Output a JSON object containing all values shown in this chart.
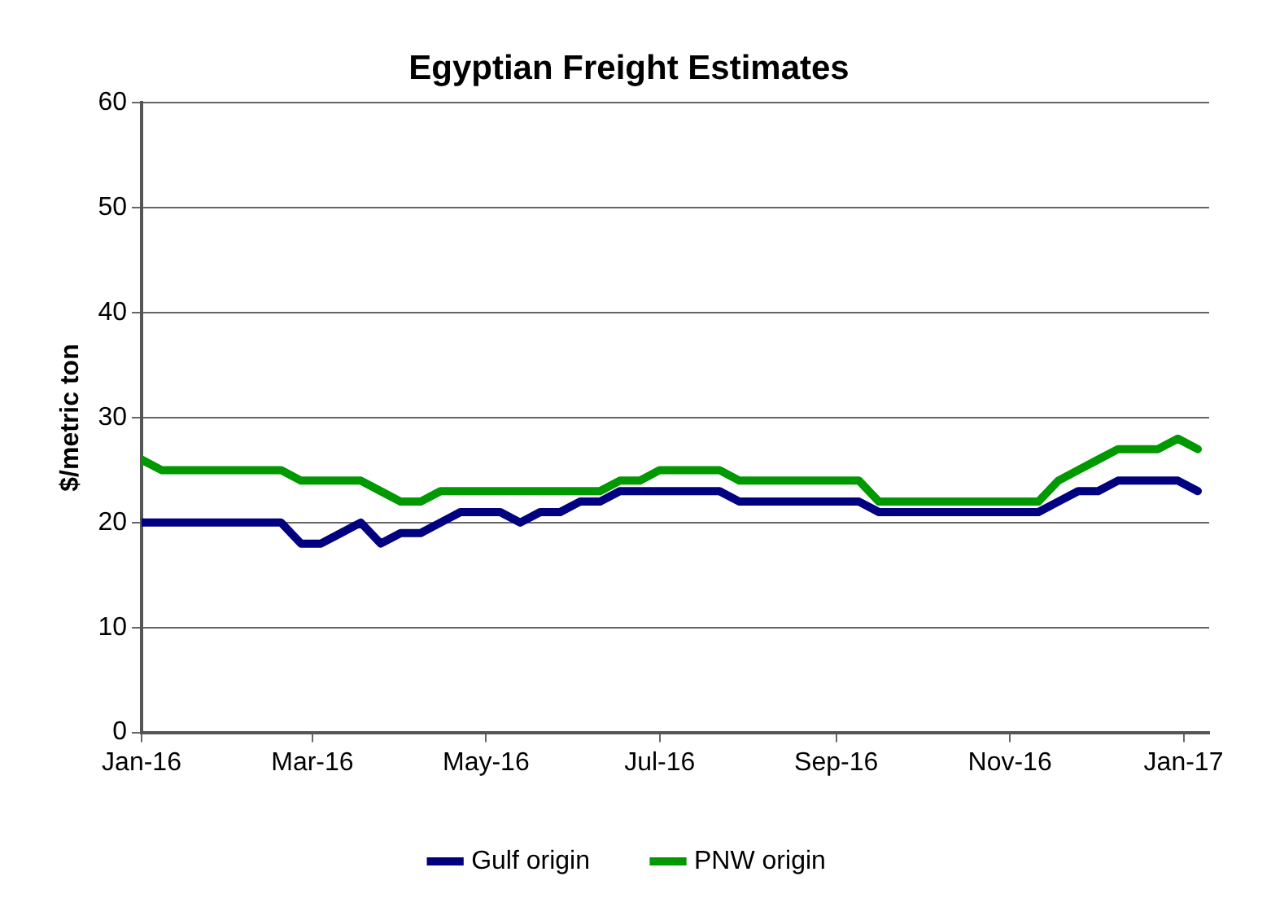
{
  "chart_data": {
    "type": "line",
    "title": "Egyptian Freight Estimates",
    "ylabel": "$/metric ton",
    "x": [
      "2016-01-01",
      "2016-01-08",
      "2016-01-15",
      "2016-01-22",
      "2016-01-29",
      "2016-02-05",
      "2016-02-12",
      "2016-02-19",
      "2016-02-26",
      "2016-03-04",
      "2016-03-11",
      "2016-03-18",
      "2016-03-25",
      "2016-04-01",
      "2016-04-08",
      "2016-04-15",
      "2016-04-22",
      "2016-04-29",
      "2016-05-06",
      "2016-05-13",
      "2016-05-20",
      "2016-05-27",
      "2016-06-03",
      "2016-06-10",
      "2016-06-17",
      "2016-06-24",
      "2016-07-01",
      "2016-07-08",
      "2016-07-15",
      "2016-07-22",
      "2016-07-29",
      "2016-08-05",
      "2016-08-12",
      "2016-08-19",
      "2016-08-26",
      "2016-09-02",
      "2016-09-09",
      "2016-09-16",
      "2016-09-23",
      "2016-09-30",
      "2016-10-07",
      "2016-10-14",
      "2016-10-21",
      "2016-10-28",
      "2016-11-04",
      "2016-11-11",
      "2016-11-18",
      "2016-11-25",
      "2016-12-02",
      "2016-12-09",
      "2016-12-16",
      "2016-12-23",
      "2016-12-30",
      "2017-01-06"
    ],
    "series": [
      {
        "name": "Gulf origin",
        "color": "#000080",
        "values": [
          20,
          20,
          20,
          20,
          20,
          20,
          20,
          20,
          18,
          18,
          19,
          20,
          18,
          19,
          19,
          20,
          21,
          21,
          21,
          20,
          21,
          21,
          22,
          22,
          23,
          23,
          23,
          23,
          23,
          23,
          22,
          22,
          22,
          22,
          22,
          22,
          22,
          21,
          21,
          21,
          21,
          21,
          21,
          21,
          21,
          21,
          22,
          23,
          23,
          24,
          24,
          24,
          24,
          23
        ]
      },
      {
        "name": "PNW origin",
        "color": "#009900",
        "values": [
          26,
          25,
          25,
          25,
          25,
          25,
          25,
          25,
          24,
          24,
          24,
          24,
          23,
          22,
          22,
          23,
          23,
          23,
          23,
          23,
          23,
          23,
          23,
          23,
          24,
          24,
          25,
          25,
          25,
          25,
          24,
          24,
          24,
          24,
          24,
          24,
          24,
          22,
          22,
          22,
          22,
          22,
          22,
          22,
          22,
          22,
          24,
          25,
          26,
          27,
          27,
          27,
          28,
          27
        ]
      }
    ],
    "xlim": [
      "2016-01-01",
      "2017-01-10"
    ],
    "xticks": [
      {
        "value": "2016-01-01",
        "label": "Jan-16"
      },
      {
        "value": "2016-03-01",
        "label": "Mar-16"
      },
      {
        "value": "2016-05-01",
        "label": "May-16"
      },
      {
        "value": "2016-07-01",
        "label": "Jul-16"
      },
      {
        "value": "2016-09-01",
        "label": "Sep-16"
      },
      {
        "value": "2016-11-01",
        "label": "Nov-16"
      },
      {
        "value": "2017-01-01",
        "label": "Jan-17"
      }
    ],
    "ylim": [
      0,
      60
    ],
    "yticks": [
      0,
      10,
      20,
      30,
      40,
      50,
      60
    ],
    "grid": "y",
    "legend": "bottom",
    "marker": "none",
    "line_style": "solid"
  }
}
